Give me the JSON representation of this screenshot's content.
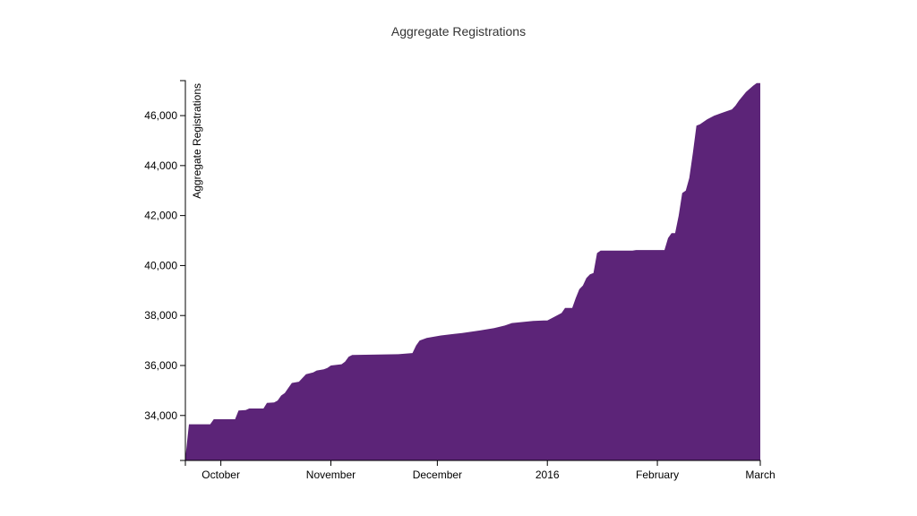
{
  "chart_data": {
    "type": "area",
    "title": "Aggregate Registrations",
    "xlabel": "",
    "ylabel": "Aggregate Registrations",
    "x_domain": [
      "2015-09-21",
      "2016-03-01"
    ],
    "ylim": [
      32200,
      47400
    ],
    "x_ticks": [
      {
        "date": "2015-10-01",
        "label": "October"
      },
      {
        "date": "2015-11-01",
        "label": "November"
      },
      {
        "date": "2015-12-01",
        "label": "December"
      },
      {
        "date": "2016-01-01",
        "label": "2016"
      },
      {
        "date": "2016-02-01",
        "label": "February"
      },
      {
        "date": "2016-03-01",
        "label": "March"
      }
    ],
    "y_ticks": [
      {
        "value": 34000,
        "label": "34,000"
      },
      {
        "value": 36000,
        "label": "36,000"
      },
      {
        "value": 38000,
        "label": "38,000"
      },
      {
        "value": 40000,
        "label": "40,000"
      },
      {
        "value": 42000,
        "label": "42,000"
      },
      {
        "value": 44000,
        "label": "44,000"
      },
      {
        "value": 46000,
        "label": "46,000"
      }
    ],
    "grid": false,
    "legend": "none",
    "color": "#5c2478",
    "series": [
      {
        "points": [
          [
            "2015-09-21",
            32300
          ],
          [
            "2015-09-22",
            33650
          ],
          [
            "2015-09-28",
            33650
          ],
          [
            "2015-09-29",
            33850
          ],
          [
            "2015-10-05",
            33850
          ],
          [
            "2015-10-06",
            34200
          ],
          [
            "2015-10-08",
            34220
          ],
          [
            "2015-10-09",
            34280
          ],
          [
            "2015-10-13",
            34280
          ],
          [
            "2015-10-14",
            34500
          ],
          [
            "2015-10-16",
            34520
          ],
          [
            "2015-10-17",
            34600
          ],
          [
            "2015-10-18",
            34800
          ],
          [
            "2015-10-19",
            34900
          ],
          [
            "2015-10-20",
            35100
          ],
          [
            "2015-10-21",
            35300
          ],
          [
            "2015-10-23",
            35350
          ],
          [
            "2015-10-24",
            35500
          ],
          [
            "2015-10-25",
            35650
          ],
          [
            "2015-10-27",
            35720
          ],
          [
            "2015-10-28",
            35800
          ],
          [
            "2015-10-30",
            35850
          ],
          [
            "2015-10-31",
            35900
          ],
          [
            "2015-11-01",
            36000
          ],
          [
            "2015-11-04",
            36050
          ],
          [
            "2015-11-05",
            36150
          ],
          [
            "2015-11-06",
            36350
          ],
          [
            "2015-11-07",
            36420
          ],
          [
            "2015-11-20",
            36450
          ],
          [
            "2015-11-24",
            36500
          ],
          [
            "2015-11-25",
            36800
          ],
          [
            "2015-11-26",
            37000
          ],
          [
            "2015-11-28",
            37100
          ],
          [
            "2015-12-02",
            37200
          ],
          [
            "2015-12-08",
            37300
          ],
          [
            "2015-12-13",
            37400
          ],
          [
            "2015-12-17",
            37500
          ],
          [
            "2015-12-20",
            37600
          ],
          [
            "2015-12-22",
            37700
          ],
          [
            "2015-12-28",
            37780
          ],
          [
            "2015-12-31",
            37800
          ],
          [
            "2016-01-01",
            37800
          ],
          [
            "2016-01-03",
            37950
          ],
          [
            "2016-01-05",
            38100
          ],
          [
            "2016-01-06",
            38300
          ],
          [
            "2016-01-08",
            38300
          ],
          [
            "2016-01-09",
            38700
          ],
          [
            "2016-01-10",
            39050
          ],
          [
            "2016-01-11",
            39200
          ],
          [
            "2016-01-12",
            39500
          ],
          [
            "2016-01-13",
            39650
          ],
          [
            "2016-01-14",
            39700
          ],
          [
            "2016-01-15",
            40500
          ],
          [
            "2016-01-16",
            40600
          ],
          [
            "2016-01-25",
            40600
          ],
          [
            "2016-01-26",
            40620
          ],
          [
            "2016-02-03",
            40620
          ],
          [
            "2016-02-04",
            41100
          ],
          [
            "2016-02-05",
            41300
          ],
          [
            "2016-02-06",
            41300
          ],
          [
            "2016-02-07",
            42000
          ],
          [
            "2016-02-08",
            42900
          ],
          [
            "2016-02-09",
            43000
          ],
          [
            "2016-02-10",
            43500
          ],
          [
            "2016-02-11",
            44500
          ],
          [
            "2016-02-12",
            45600
          ],
          [
            "2016-02-13",
            45650
          ],
          [
            "2016-02-14",
            45750
          ],
          [
            "2016-02-15",
            45850
          ],
          [
            "2016-02-17",
            46000
          ],
          [
            "2016-02-19",
            46100
          ],
          [
            "2016-02-21",
            46200
          ],
          [
            "2016-02-22",
            46250
          ],
          [
            "2016-02-23",
            46400
          ],
          [
            "2016-02-24",
            46600
          ],
          [
            "2016-02-26",
            46950
          ],
          [
            "2016-02-28",
            47200
          ],
          [
            "2016-02-29",
            47300
          ],
          [
            "2016-03-01",
            47300
          ]
        ]
      }
    ]
  }
}
